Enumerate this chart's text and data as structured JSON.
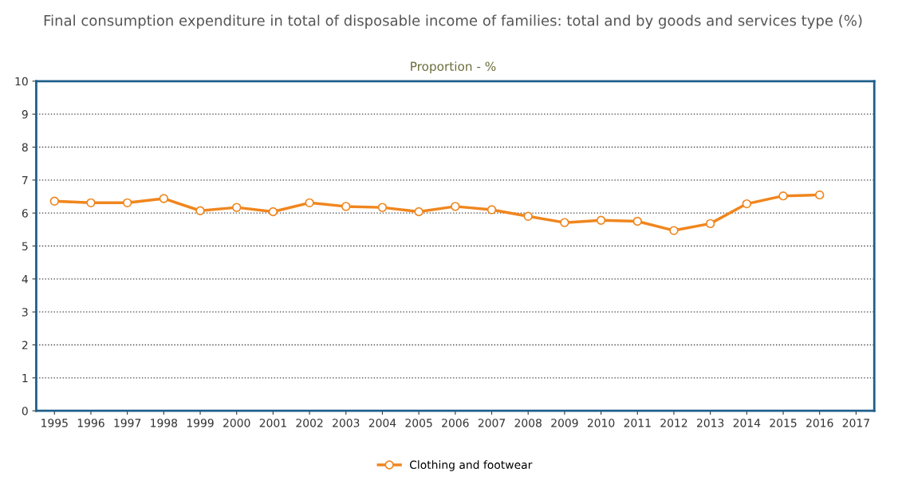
{
  "chart_data": {
    "type": "line",
    "title": "Final consumption expenditure in total of disposable income of families: total and by goods and services type (%)",
    "subtitle": "Proportion - %",
    "categories": [
      "1995",
      "1996",
      "1997",
      "1998",
      "1999",
      "2000",
      "2001",
      "2002",
      "2003",
      "2004",
      "2005",
      "2006",
      "2007",
      "2008",
      "2009",
      "2010",
      "2011",
      "2012",
      "2013",
      "2014",
      "2015",
      "2016",
      "2017"
    ],
    "series": [
      {
        "name": "Clothing and footwear",
        "color": "#f0861e",
        "values": [
          6.36,
          6.31,
          6.31,
          6.44,
          6.07,
          6.17,
          6.04,
          6.31,
          6.2,
          6.17,
          6.04,
          6.2,
          6.1,
          5.9,
          5.71,
          5.78,
          5.75,
          5.47,
          5.68,
          6.28,
          6.52,
          6.55,
          null
        ]
      }
    ],
    "ylim": [
      0,
      10
    ],
    "yticks": [
      0,
      1,
      2,
      3,
      4,
      5,
      6,
      7,
      8,
      9,
      10
    ],
    "grid": "y",
    "legend": "bottom",
    "marker": "circle",
    "line_style": "solid"
  }
}
